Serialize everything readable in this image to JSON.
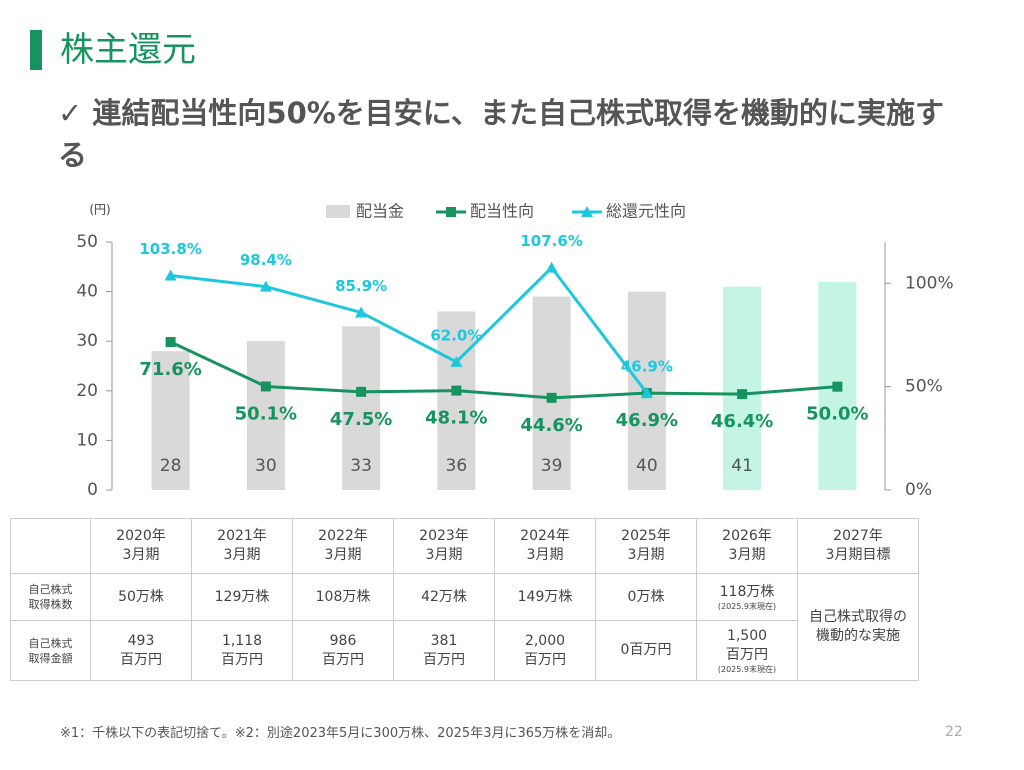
{
  "header": {
    "title": "株主還元",
    "subtitle": "✓ 連結配当性向50%を目安に、また自己株式取得を機動的に実施する"
  },
  "chart_data": {
    "type": "bar-line",
    "unit_label": "(円)",
    "categories": [
      "2020年\n3月期",
      "2021年\n3月期",
      "2022年\n3月期",
      "2023年\n3月期",
      "2024年\n3月期",
      "2025年\n3月期",
      "2026年\n3月期",
      "2027年\n3月期目標"
    ],
    "bar_series": {
      "name": "配当金",
      "values": [
        28,
        30,
        33,
        36,
        39,
        40,
        41,
        42
      ],
      "value_labels": [
        "28",
        "30",
        "33",
        "36",
        "39",
        "40",
        "41",
        null
      ],
      "colors": [
        "#d9d9d9",
        "#d9d9d9",
        "#d9d9d9",
        "#d9d9d9",
        "#d9d9d9",
        "#d9d9d9",
        "#c3f4e4",
        "#c3f4e4"
      ]
    },
    "series": [
      {
        "name": "配当性向",
        "color": "#17935f",
        "marker": "square",
        "axis": "y2",
        "values": [
          71.6,
          50.1,
          47.5,
          48.1,
          44.6,
          46.9,
          46.4,
          50.0
        ],
        "value_labels": [
          "71.6%",
          "50.1%",
          "47.5%",
          "48.1%",
          "44.6%",
          "46.9%",
          "46.4%",
          "50.0%"
        ]
      },
      {
        "name": "総還元性向",
        "color": "#1ec8dc",
        "marker": "triangle",
        "axis": "y2",
        "values": [
          103.8,
          98.4,
          85.9,
          62.0,
          107.6,
          46.9,
          null,
          null
        ],
        "value_labels": [
          "103.8%",
          "98.4%",
          "85.9%",
          "62.0%",
          "107.6%",
          "46.9%",
          null,
          null
        ]
      }
    ],
    "ylim": [
      0,
      50
    ],
    "yticks": [
      0,
      10,
      20,
      30,
      40,
      50
    ],
    "y2lim": [
      0,
      120
    ],
    "y2ticks": [
      {
        "value": 0,
        "label": "0%"
      },
      {
        "value": 50,
        "label": "50%"
      },
      {
        "value": 100,
        "label": "100%"
      }
    ]
  },
  "table": {
    "rows": [
      {
        "label": "自己株式\n取得株数",
        "cells": [
          "50万株",
          "129万株",
          "108万株",
          "42万株",
          "149万株",
          "0万株",
          "118万株"
        ]
      },
      {
        "label": "自己株式\n取得金額",
        "cells": [
          "493\n百万円",
          "1,118\n百万円",
          "986\n百万円",
          "381\n百万円",
          "2,000\n百万円",
          "0百万円",
          "1,500\n百万円"
        ]
      }
    ],
    "note": "(2025.9末現在)",
    "merged": "自己株式取得の機動的な実施"
  },
  "footer": {
    "note": "※1：千株以下の表記切捨て。※2：別途2023年5月に300万株、2025年3月に365万株を消却。",
    "page": "22"
  }
}
